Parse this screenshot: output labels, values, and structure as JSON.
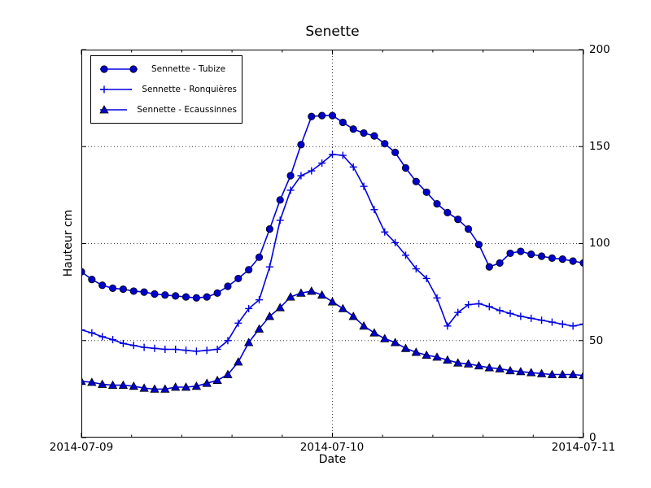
{
  "chart_data": {
    "type": "line",
    "title": "Senette",
    "xlabel": "Date",
    "ylabel": "Hauteur cm",
    "x_tick_labels": [
      "2014-07-09",
      "2014-07-10",
      "2014-07-11"
    ],
    "x_days": 2,
    "x_minor_ticks_per_day": 5,
    "points_per_day": 24,
    "ylim": [
      0,
      200
    ],
    "y_ticks": [
      0,
      50,
      100,
      150,
      200
    ],
    "y_tick_side": "right",
    "y_gridlines": [
      50,
      100,
      150
    ],
    "x_gridline_days": [
      1
    ],
    "grid_style": "dotted",
    "legend_position": "upper-left",
    "line_color": "#0000e0",
    "marker_fill": "#0000cd",
    "marker_edge": "#000000",
    "series": [
      {
        "name": "Sennette - Tubize",
        "marker": "circle",
        "values": [
          85.5,
          81.5,
          78.5,
          77,
          76.5,
          75.5,
          75,
          74,
          73.5,
          73,
          72.5,
          72,
          72.5,
          74.5,
          78,
          82,
          86.5,
          93,
          107.5,
          122.5,
          135,
          151,
          165.5,
          166,
          166,
          162.5,
          159,
          157,
          155.5,
          151.5,
          147,
          139,
          132,
          126.5,
          120.5,
          116,
          112.5,
          107.5,
          99.5,
          88,
          90,
          95,
          96,
          94.5,
          93.5,
          92.5,
          92,
          91,
          90
        ]
      },
      {
        "name": "Sennette - Ronquières",
        "marker": "plus",
        "values": [
          55.5,
          54,
          52,
          50.5,
          48.5,
          47.5,
          46.5,
          46,
          45.5,
          45.5,
          45,
          44.5,
          45,
          45.5,
          50,
          59,
          66.5,
          71,
          88,
          112,
          127.5,
          135,
          137.5,
          141.5,
          146,
          145.5,
          139.5,
          129.5,
          117.5,
          106,
          100.5,
          94,
          87,
          82,
          72,
          57.5,
          64.5,
          68.5,
          69,
          67.5,
          65.5,
          64,
          62.5,
          61.5,
          60.5,
          59.5,
          58.5,
          57.5,
          58.5
        ]
      },
      {
        "name": "Sennette - Ecaussinnes",
        "marker": "triangle",
        "values": [
          29,
          28.5,
          27.5,
          27,
          27,
          26.5,
          25.5,
          25,
          25,
          26,
          26,
          26.5,
          28,
          29.5,
          32.5,
          39,
          49,
          56,
          62.5,
          67,
          72.5,
          74.5,
          75.5,
          73.5,
          70,
          66.5,
          62.5,
          57.5,
          54,
          51,
          49,
          46,
          44,
          42.5,
          41.5,
          40,
          38.5,
          38,
          37,
          36,
          35.5,
          34.5,
          34,
          33.5,
          33,
          32.5,
          32.5,
          32.5,
          32
        ]
      }
    ]
  }
}
